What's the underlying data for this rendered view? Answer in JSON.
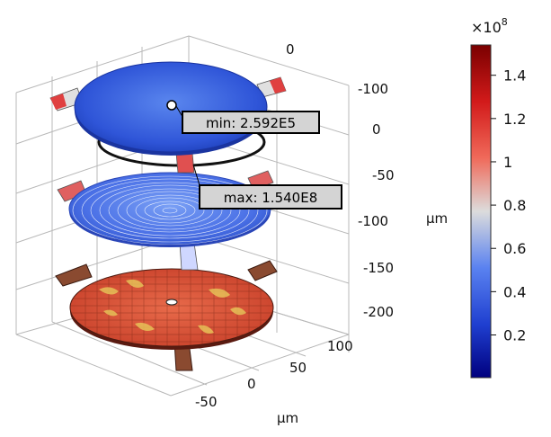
{
  "chart_data": {
    "type": "3d-surface",
    "axes": {
      "x": {
        "unit": "μm",
        "ticks": [
          "-50",
          "0",
          "50",
          "100"
        ]
      },
      "y": {
        "ticks": [
          "0"
        ]
      },
      "z": {
        "unit": "μm",
        "ticks": [
          "-100",
          "0",
          "-50",
          "-100",
          "-150",
          "-200"
        ]
      }
    },
    "annotations": [
      {
        "name": "min",
        "text": "min: 2.592E5",
        "value": 259200
      },
      {
        "name": "max",
        "text": "max: 1.540E8",
        "value": 154000000
      }
    ],
    "colorbar": {
      "multiplier": "×10",
      "exponent": "8",
      "ticks": [
        "1.4",
        "1.2",
        "1",
        "0.8",
        "0.6",
        "0.4",
        "0.2"
      ],
      "tick_values": [
        1.4,
        1.2,
        1.0,
        0.8,
        0.6,
        0.4,
        0.2
      ],
      "range": [
        0.0026,
        1.54
      ],
      "colors": [
        "#00007f",
        "#1f3fd0",
        "#5a82f0",
        "#dcdcdc",
        "#f06a5a",
        "#d21a1a",
        "#7a0000"
      ]
    },
    "layers": [
      {
        "name": "top-disk",
        "style": "blue-surface"
      },
      {
        "name": "middle-disk",
        "style": "blue-contour"
      },
      {
        "name": "bottom-disk",
        "style": "red-mesh"
      }
    ],
    "grid": true
  }
}
